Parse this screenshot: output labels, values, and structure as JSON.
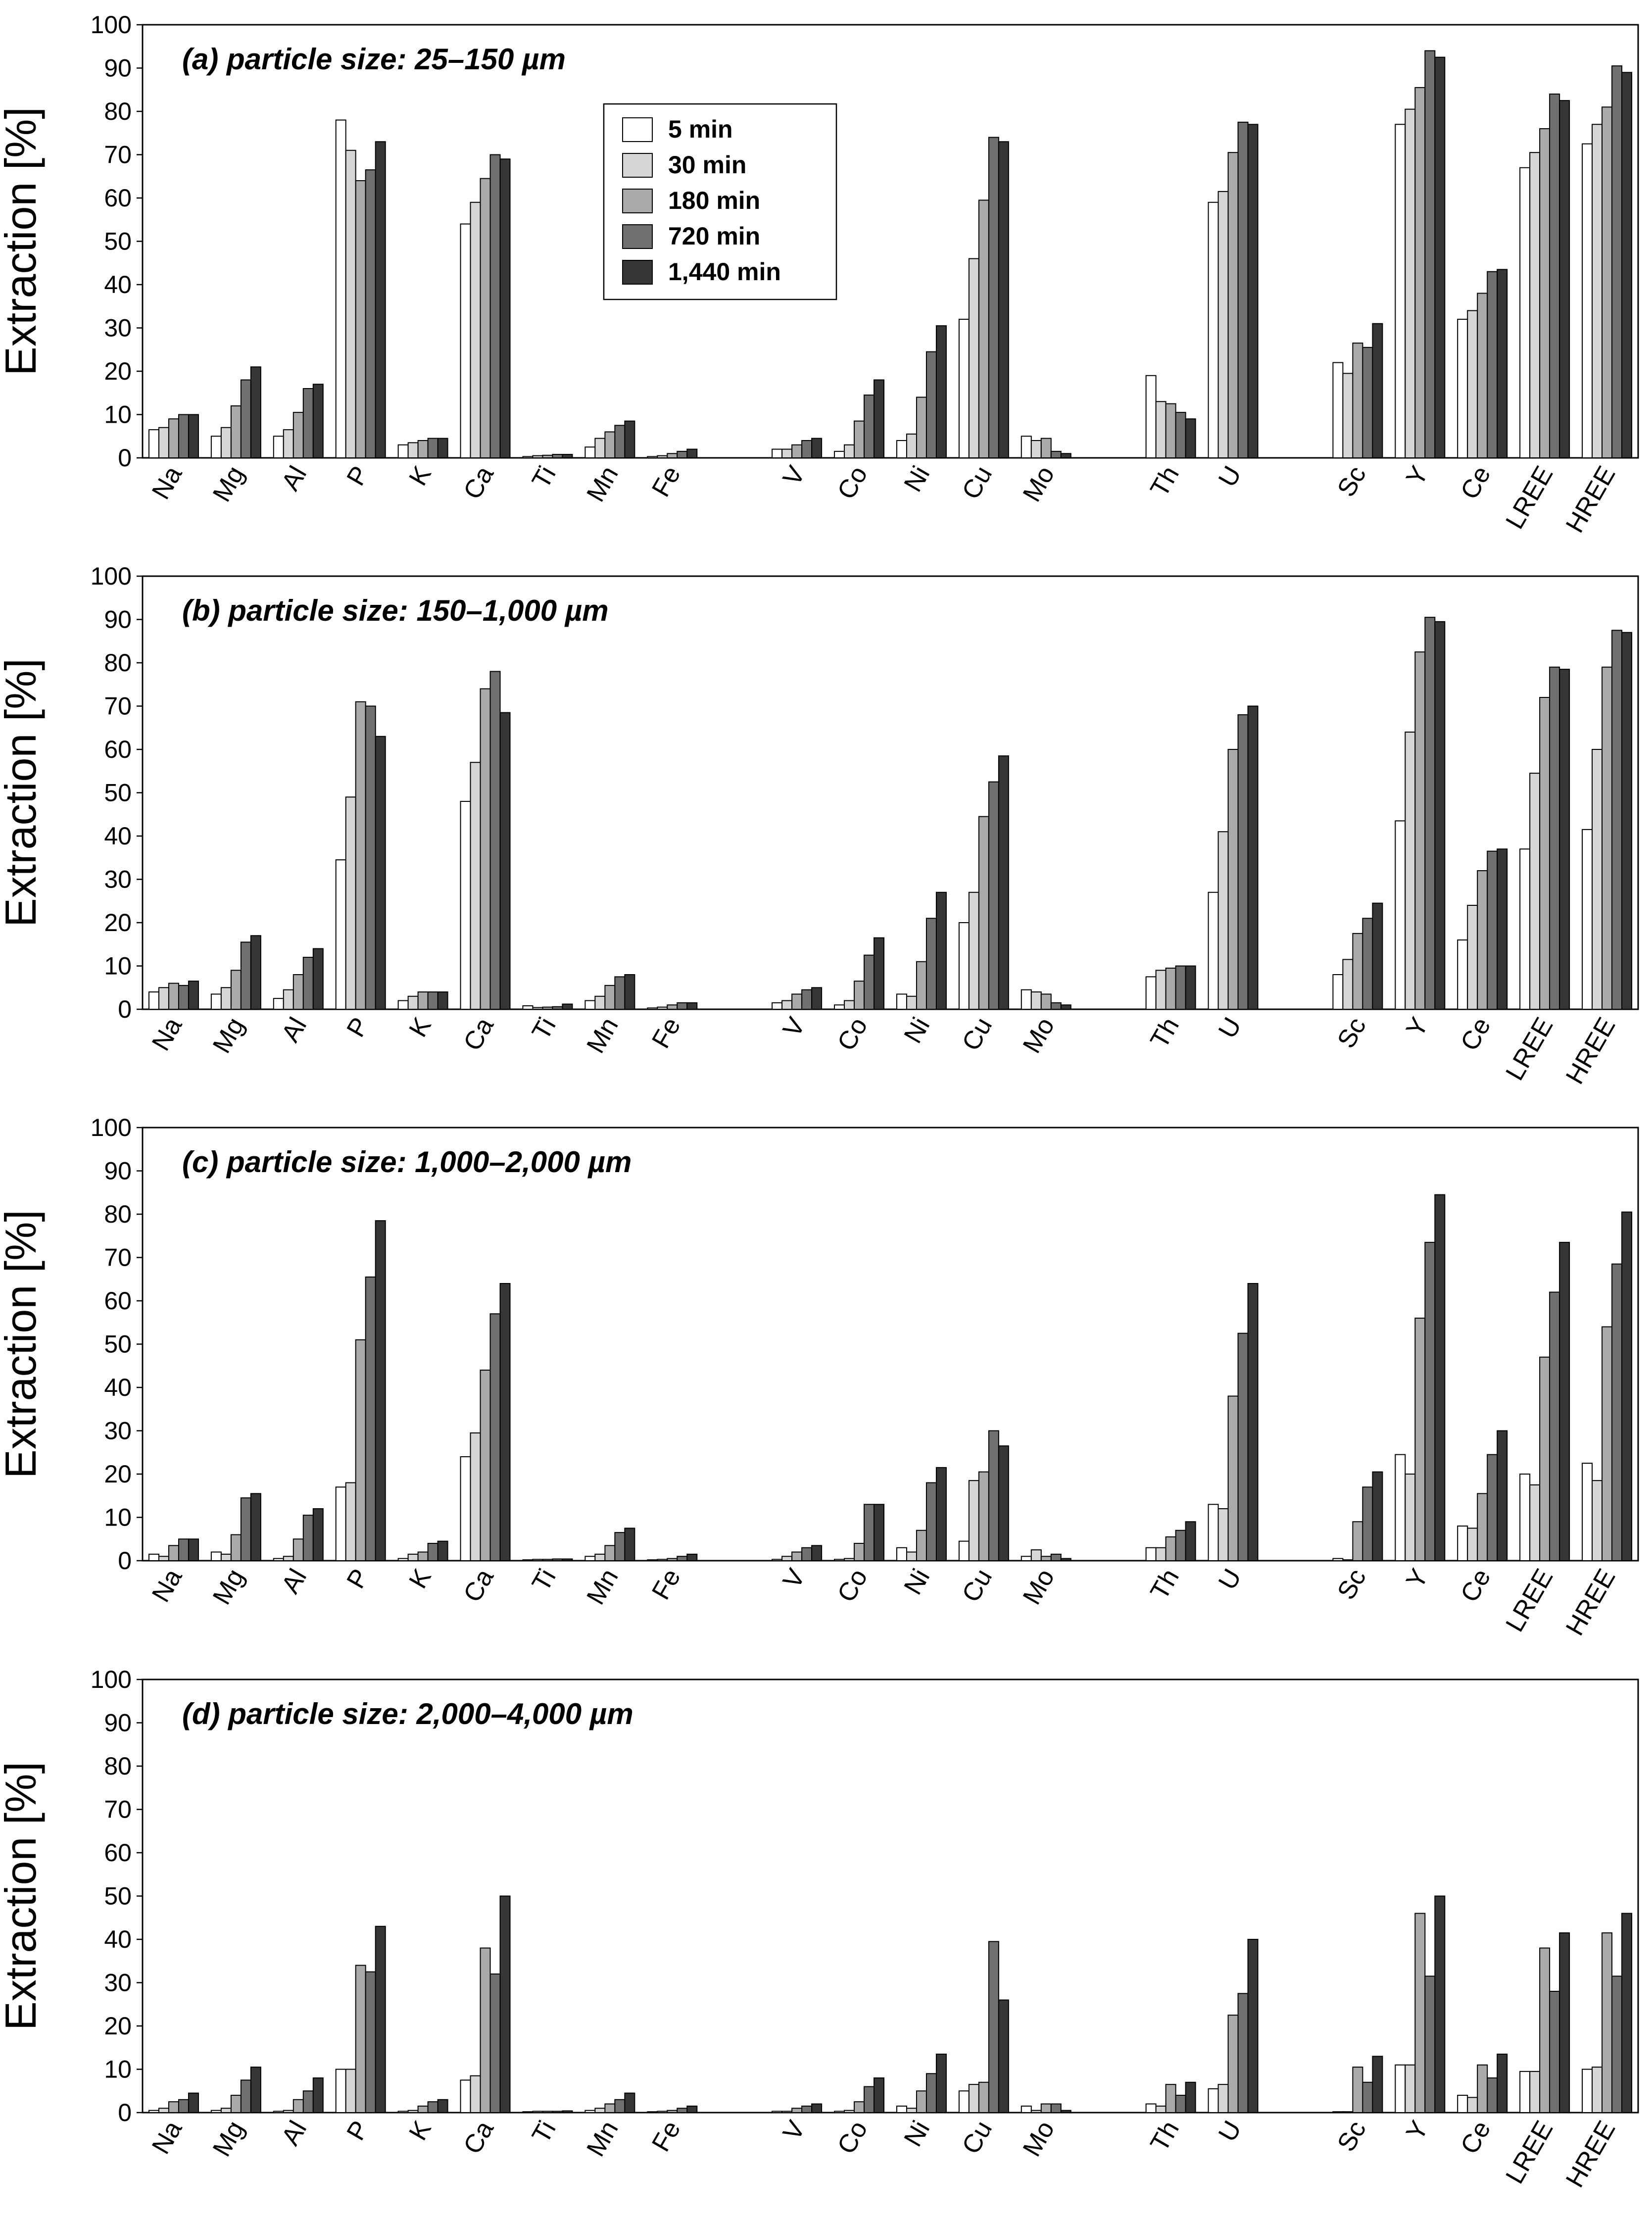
{
  "chart_data": [
    {
      "type": "bar",
      "title": "(a) particle size: 25–150 µm",
      "ylabel": "Extraction [%]",
      "ylim": [
        0,
        100
      ],
      "yticks": [
        0,
        10,
        20,
        30,
        40,
        50,
        60,
        70,
        80,
        90,
        100
      ],
      "categories": [
        "Na",
        "Mg",
        "Al",
        "P",
        "K",
        "Ca",
        "Ti",
        "Mn",
        "Fe",
        "",
        "V",
        "Co",
        "Ni",
        "Cu",
        "Mo",
        "",
        "Th",
        "U",
        "",
        "Sc",
        "Y",
        "Ce",
        "LREE",
        "HREE"
      ],
      "series": [
        {
          "name": "5 min",
          "values": [
            6.5,
            5,
            5,
            78,
            3,
            54,
            0.3,
            2.5,
            0.3,
            null,
            2,
            1.5,
            4,
            32,
            5,
            null,
            19,
            59,
            null,
            22,
            77,
            32,
            67,
            72.5
          ]
        },
        {
          "name": "30 min",
          "values": [
            7,
            7,
            6.5,
            71,
            3.5,
            59,
            0.5,
            4.5,
            0.5,
            null,
            2,
            3,
            5.5,
            46,
            4,
            null,
            13,
            61.5,
            null,
            19.5,
            80.5,
            34,
            70.5,
            77
          ]
        },
        {
          "name": "180 min",
          "values": [
            9,
            12,
            10.5,
            64,
            4,
            64.5,
            0.6,
            6,
            1,
            null,
            3,
            8.5,
            14,
            59.5,
            4.5,
            null,
            12.5,
            70.5,
            null,
            26.5,
            85.5,
            38,
            76,
            81
          ]
        },
        {
          "name": "720 min",
          "values": [
            10,
            18,
            16,
            66.5,
            4.5,
            70,
            0.8,
            7.5,
            1.5,
            null,
            4,
            14.5,
            24.5,
            74,
            1.5,
            null,
            10.5,
            77.5,
            null,
            25.5,
            94,
            43,
            84,
            90.5
          ]
        },
        {
          "name": "1,440 min",
          "values": [
            10,
            21,
            17,
            73,
            4.5,
            69,
            0.8,
            8.5,
            2,
            null,
            4.5,
            18,
            30.5,
            73,
            1,
            null,
            9,
            77,
            null,
            31,
            92.5,
            43.5,
            82.5,
            89
          ]
        }
      ]
    },
    {
      "type": "bar",
      "title": "(b) particle size: 150–1,000 µm",
      "ylabel": "Extraction [%]",
      "ylim": [
        0,
        100
      ],
      "yticks": [
        0,
        10,
        20,
        30,
        40,
        50,
        60,
        70,
        80,
        90,
        100
      ],
      "categories": [
        "Na",
        "Mg",
        "Al",
        "P",
        "K",
        "Ca",
        "Ti",
        "Mn",
        "Fe",
        "",
        "V",
        "Co",
        "Ni",
        "Cu",
        "Mo",
        "",
        "Th",
        "U",
        "",
        "Sc",
        "Y",
        "Ce",
        "LREE",
        "HREE"
      ],
      "series": [
        {
          "name": "5 min",
          "values": [
            4,
            3.5,
            2.5,
            34.5,
            2,
            48,
            0.8,
            2,
            0.3,
            null,
            1.5,
            1,
            3.5,
            20,
            4.5,
            null,
            7.5,
            27,
            null,
            8,
            43.5,
            16,
            37,
            41.5
          ]
        },
        {
          "name": "30 min",
          "values": [
            5,
            5,
            4.5,
            49,
            3,
            57,
            0.4,
            3,
            0.5,
            null,
            2,
            2,
            3,
            27,
            4,
            null,
            9,
            41,
            null,
            11.5,
            64,
            24,
            54.5,
            60
          ]
        },
        {
          "name": "180 min",
          "values": [
            6,
            9,
            8,
            71,
            4,
            74,
            0.5,
            5.5,
            1,
            null,
            3.5,
            6.5,
            11,
            44.5,
            3.5,
            null,
            9.5,
            60,
            null,
            17.5,
            82.5,
            32,
            72,
            79
          ]
        },
        {
          "name": "720 min",
          "values": [
            5.5,
            15.5,
            12,
            70,
            4,
            78,
            0.6,
            7.5,
            1.5,
            null,
            4.5,
            12.5,
            21,
            52.5,
            1.5,
            null,
            10,
            68,
            null,
            21,
            90.5,
            36.5,
            79,
            87.5
          ]
        },
        {
          "name": "1,440 min",
          "values": [
            6.5,
            17,
            14,
            63,
            4,
            68.5,
            1.2,
            8,
            1.5,
            null,
            5,
            16.5,
            27,
            58.5,
            1,
            null,
            10,
            70,
            null,
            24.5,
            89.5,
            37,
            78.5,
            87
          ]
        }
      ]
    },
    {
      "type": "bar",
      "title": "(c) particle size: 1,000–2,000 µm",
      "ylabel": "Extraction [%]",
      "ylim": [
        0,
        100
      ],
      "yticks": [
        0,
        10,
        20,
        30,
        40,
        50,
        60,
        70,
        80,
        90,
        100
      ],
      "categories": [
        "Na",
        "Mg",
        "Al",
        "P",
        "K",
        "Ca",
        "Ti",
        "Mn",
        "Fe",
        "",
        "V",
        "Co",
        "Ni",
        "Cu",
        "Mo",
        "",
        "Th",
        "U",
        "",
        "Sc",
        "Y",
        "Ce",
        "LREE",
        "HREE"
      ],
      "series": [
        {
          "name": "5 min",
          "values": [
            1.5,
            2,
            0.5,
            17,
            0.5,
            24,
            0.2,
            1,
            0.2,
            null,
            0.3,
            0.3,
            3,
            4.5,
            1,
            null,
            3,
            13,
            null,
            0.5,
            24.5,
            8,
            20,
            22.5
          ]
        },
        {
          "name": "30 min",
          "values": [
            1,
            1.5,
            1,
            18,
            1.5,
            29.5,
            0.3,
            1.5,
            0.3,
            null,
            1,
            0.5,
            2,
            18.5,
            2.5,
            null,
            3,
            12,
            null,
            0.2,
            20,
            7.5,
            17.5,
            18.5
          ]
        },
        {
          "name": "180 min",
          "values": [
            3.5,
            6,
            5,
            51,
            2,
            44,
            0.3,
            3.5,
            0.5,
            null,
            2,
            4,
            7,
            20.5,
            1,
            null,
            5.5,
            38,
            null,
            9,
            56,
            15.5,
            47,
            54
          ]
        },
        {
          "name": "720 min",
          "values": [
            5,
            14.5,
            10.5,
            65.5,
            4,
            57,
            0.4,
            6.5,
            1,
            null,
            3,
            13,
            18,
            30,
            1.5,
            null,
            7,
            52.5,
            null,
            17,
            73.5,
            24.5,
            62,
            68.5
          ]
        },
        {
          "name": "1,440 min",
          "values": [
            5,
            15.5,
            12,
            78.5,
            4.5,
            64,
            0.4,
            7.5,
            1.5,
            null,
            3.5,
            13,
            21.5,
            26.5,
            0.5,
            null,
            9,
            64,
            null,
            20.5,
            84.5,
            30,
            73.5,
            80.5
          ]
        }
      ]
    },
    {
      "type": "bar",
      "title": "(d) particle size: 2,000–4,000 µm",
      "ylabel": "Extraction [%]",
      "ylim": [
        0,
        100
      ],
      "yticks": [
        0,
        10,
        20,
        30,
        40,
        50,
        60,
        70,
        80,
        90,
        100
      ],
      "categories": [
        "Na",
        "Mg",
        "Al",
        "P",
        "K",
        "Ca",
        "Ti",
        "Mn",
        "Fe",
        "",
        "V",
        "Co",
        "Ni",
        "Cu",
        "Mo",
        "",
        "Th",
        "U",
        "",
        "Sc",
        "Y",
        "Ce",
        "LREE",
        "HREE"
      ],
      "series": [
        {
          "name": "5 min",
          "values": [
            0.5,
            0.5,
            0.3,
            10,
            0.3,
            7.5,
            0.2,
            0.5,
            0.2,
            null,
            0.3,
            0.3,
            1.5,
            5,
            1.5,
            null,
            2,
            5.5,
            null,
            0.2,
            11,
            4,
            9.5,
            10
          ]
        },
        {
          "name": "30 min",
          "values": [
            1,
            1,
            0.5,
            10,
            0.5,
            8.5,
            0.3,
            1,
            0.3,
            null,
            0.3,
            0.5,
            1,
            6.5,
            0.5,
            null,
            1.5,
            6.5,
            null,
            0.2,
            11,
            3.5,
            9.5,
            10.5
          ]
        },
        {
          "name": "180 min",
          "values": [
            2.5,
            4,
            3,
            34,
            1.5,
            38,
            0.3,
            2,
            0.5,
            null,
            1,
            2.5,
            5,
            7,
            2,
            null,
            6.5,
            22.5,
            null,
            10.5,
            46,
            11,
            38,
            41.5
          ]
        },
        {
          "name": "720 min",
          "values": [
            3,
            7.5,
            5,
            32.5,
            2.5,
            32,
            0.3,
            3,
            1,
            null,
            1.5,
            6,
            9,
            39.5,
            2,
            null,
            4,
            27.5,
            null,
            7,
            31.5,
            8,
            28,
            31.5
          ]
        },
        {
          "name": "1,440 min",
          "values": [
            4.5,
            10.5,
            8,
            43,
            3,
            50,
            0.4,
            4.5,
            1.5,
            null,
            2,
            8,
            13.5,
            26,
            0.5,
            null,
            7,
            40,
            null,
            13,
            50,
            13.5,
            41.5,
            46
          ]
        }
      ]
    }
  ],
  "legend": {
    "position": "top-left-center of panel (a)",
    "entries": [
      "5 min",
      "30 min",
      "180 min",
      "720 min",
      "1,440 min"
    ]
  },
  "colors": {
    "series": [
      "#ffffff",
      "#d6d6d6",
      "#aaaaaa",
      "#707070",
      "#363636"
    ],
    "frame": "#000000"
  }
}
